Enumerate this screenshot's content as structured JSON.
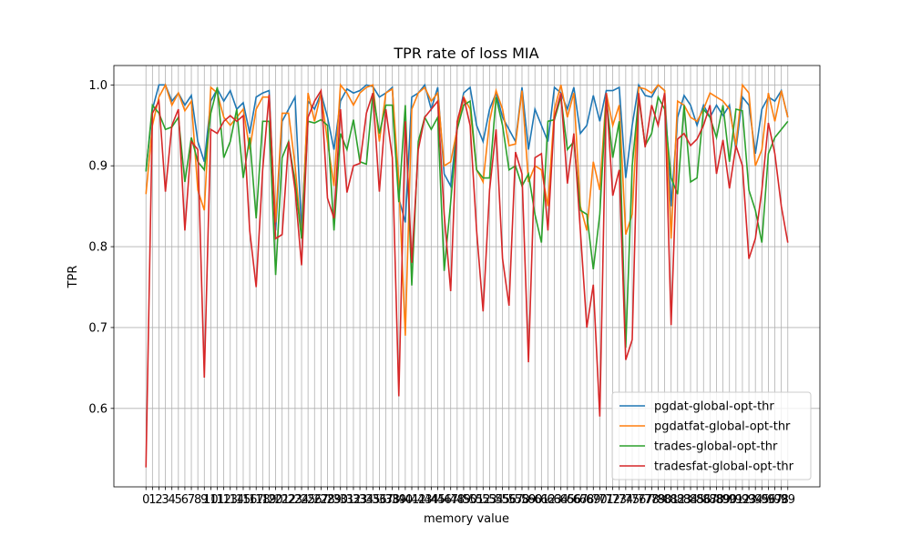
{
  "chart_data": {
    "type": "line",
    "title": "TPR rate of loss MIA",
    "x_label": "memory value",
    "y_label": "TPR",
    "x": [
      0,
      1,
      2,
      3,
      4,
      5,
      6,
      7,
      8,
      9,
      10,
      11,
      12,
      13,
      14,
      15,
      16,
      17,
      18,
      19,
      20,
      21,
      22,
      23,
      24,
      25,
      26,
      27,
      28,
      29,
      30,
      31,
      32,
      33,
      34,
      35,
      36,
      37,
      38,
      39,
      40,
      41,
      42,
      43,
      44,
      45,
      46,
      47,
      48,
      49,
      50,
      51,
      52,
      53,
      54,
      55,
      56,
      57,
      58,
      59,
      60,
      61,
      62,
      63,
      64,
      65,
      66,
      67,
      68,
      69,
      70,
      71,
      72,
      73,
      74,
      75,
      76,
      77,
      78,
      79,
      80,
      81,
      82,
      83,
      84,
      85,
      86,
      87,
      88,
      89,
      90,
      91,
      92,
      93,
      94,
      95,
      96,
      97,
      98,
      99
    ],
    "xticks": [
      0,
      1,
      2,
      3,
      4,
      5,
      6,
      7,
      8,
      9,
      10,
      11,
      12,
      13,
      14,
      15,
      16,
      17,
      18,
      19,
      20,
      21,
      22,
      23,
      24,
      25,
      26,
      27,
      28,
      29,
      30,
      31,
      32,
      33,
      34,
      35,
      36,
      37,
      38,
      39,
      40,
      41,
      42,
      43,
      44,
      45,
      46,
      47,
      48,
      49,
      50,
      51,
      52,
      53,
      54,
      55,
      56,
      57,
      58,
      59,
      60,
      61,
      62,
      63,
      64,
      65,
      66,
      67,
      68,
      69,
      70,
      71,
      72,
      73,
      74,
      75,
      76,
      77,
      78,
      79,
      80,
      81,
      82,
      83,
      84,
      85,
      86,
      87,
      88,
      89,
      90,
      91,
      92,
      93,
      94,
      95,
      96,
      97,
      98,
      99
    ],
    "xlim": [
      -4.95,
      103.95
    ],
    "ylim": [
      0.503,
      1.024
    ],
    "yticks": [
      0.6,
      0.7,
      0.8,
      0.9,
      {
        "value": 1,
        "label": "1.0"
      }
    ],
    "grid": true,
    "legend": "lower right",
    "series": [
      {
        "name": "pgdat-global-opt-thr",
        "color": "#1f77b4",
        "values": [
          0.893,
          0.97,
          1,
          1,
          0.98,
          0.99,
          0.975,
          0.987,
          0.93,
          0.905,
          0.98,
          0.995,
          0.98,
          0.993,
          0.97,
          0.978,
          0.94,
          0.985,
          0.99,
          0.993,
          0.82,
          0.955,
          0.97,
          0.985,
          0.82,
          0.98,
          0.97,
          0.99,
          0.96,
          0.92,
          0.98,
          0.995,
          0.99,
          0.993,
          1,
          0.998,
          0.985,
          0.99,
          0.997,
          0.86,
          0.83,
          0.985,
          0.99,
          1,
          0.97,
          0.997,
          0.89,
          0.875,
          0.95,
          0.99,
          0.997,
          0.95,
          0.93,
          0.97,
          0.99,
          0.96,
          0.945,
          0.93,
          0.997,
          0.92,
          0.97,
          0.95,
          0.93,
          0.997,
          0.99,
          0.97,
          0.997,
          0.94,
          0.95,
          0.987,
          0.955,
          0.993,
          0.993,
          0.997,
          0.885,
          0.95,
          1,
          0.987,
          0.985,
          1,
          0.993,
          0.85,
          0.96,
          0.987,
          0.975,
          0.95,
          0.975,
          0.96,
          0.975,
          0.962,
          0.975,
          0.92,
          0.985,
          0.975,
          0.915,
          0.97,
          0.985,
          0.98,
          0.993,
          0.96
        ]
      },
      {
        "name": "pgdatfat-global-opt-thr",
        "color": "#ff7f0e",
        "values": [
          0.865,
          0.95,
          0.985,
          1,
          0.975,
          0.99,
          0.968,
          0.98,
          0.87,
          0.845,
          0.997,
          0.99,
          0.96,
          0.95,
          0.96,
          0.97,
          0.92,
          0.97,
          0.985,
          0.985,
          0.83,
          0.965,
          0.965,
          0.9,
          0.81,
          0.99,
          0.955,
          0.99,
          0.93,
          0.875,
          1,
          0.99,
          0.975,
          0.99,
          0.997,
          1,
          0.93,
          0.99,
          0.995,
          0.88,
          0.69,
          0.97,
          0.99,
          0.997,
          0.98,
          0.99,
          0.9,
          0.905,
          0.945,
          0.985,
          0.97,
          0.895,
          0.88,
          0.955,
          0.993,
          0.97,
          0.925,
          0.927,
          0.993,
          0.88,
          0.9,
          0.895,
          0.85,
          0.97,
          1,
          0.96,
          0.99,
          0.85,
          0.82,
          0.905,
          0.87,
          0.99,
          0.95,
          0.975,
          0.815,
          0.84,
          0.997,
          0.995,
          0.99,
          1,
          0.993,
          0.81,
          0.98,
          0.975,
          0.96,
          0.955,
          0.97,
          0.99,
          0.985,
          0.98,
          0.97,
          0.925,
          1,
          0.99,
          0.9,
          0.92,
          0.99,
          0.955,
          0.993,
          0.96
        ]
      },
      {
        "name": "trades-global-opt-thr",
        "color": "#2ca02c",
        "values": [
          0.893,
          0.975,
          0.965,
          0.945,
          0.948,
          0.96,
          0.88,
          0.935,
          0.905,
          0.895,
          0.965,
          0.997,
          0.91,
          0.93,
          0.97,
          0.885,
          0.935,
          0.835,
          0.955,
          0.955,
          0.765,
          0.91,
          0.93,
          0.88,
          0.81,
          0.955,
          0.953,
          0.957,
          0.95,
          0.82,
          0.94,
          0.92,
          0.957,
          0.905,
          0.902,
          0.99,
          0.94,
          0.975,
          0.975,
          0.855,
          0.975,
          0.752,
          0.93,
          0.96,
          0.945,
          0.96,
          0.77,
          0.855,
          0.945,
          0.975,
          0.98,
          0.895,
          0.885,
          0.885,
          0.985,
          0.95,
          0.895,
          0.9,
          0.875,
          0.89,
          0.84,
          0.805,
          0.955,
          0.957,
          0.985,
          0.92,
          0.93,
          0.845,
          0.84,
          0.772,
          0.84,
          0.985,
          0.91,
          0.955,
          0.675,
          0.9,
          0.985,
          0.925,
          0.94,
          0.985,
          0.97,
          0.885,
          0.865,
          0.975,
          0.88,
          0.885,
          0.97,
          0.96,
          0.935,
          0.975,
          0.905,
          0.97,
          0.968,
          0.87,
          0.845,
          0.805,
          0.915,
          0.935,
          0.945,
          0.955
        ]
      },
      {
        "name": "tradesfat-global-opt-thr",
        "color": "#d62728",
        "values": [
          0.527,
          0.965,
          0.98,
          0.868,
          0.95,
          0.97,
          0.82,
          0.93,
          0.92,
          0.638,
          0.945,
          0.94,
          0.955,
          0.962,
          0.955,
          0.962,
          0.82,
          0.75,
          0.895,
          0.988,
          0.81,
          0.815,
          0.93,
          0.87,
          0.777,
          0.96,
          0.98,
          0.993,
          0.86,
          0.835,
          0.97,
          0.867,
          0.9,
          0.903,
          0.965,
          0.99,
          0.868,
          0.97,
          0.91,
          0.615,
          0.955,
          0.78,
          0.92,
          0.96,
          0.97,
          0.98,
          0.84,
          0.745,
          0.955,
          0.985,
          0.95,
          0.82,
          0.72,
          0.87,
          0.945,
          0.785,
          0.727,
          0.917,
          0.89,
          0.657,
          0.91,
          0.915,
          0.82,
          0.96,
          0.99,
          0.878,
          0.94,
          0.82,
          0.7,
          0.753,
          0.59,
          0.99,
          0.863,
          0.895,
          0.66,
          0.685,
          0.99,
          0.923,
          0.975,
          0.95,
          0.99,
          0.703,
          0.933,
          0.94,
          0.925,
          0.933,
          0.95,
          0.975,
          0.89,
          0.932,
          0.872,
          0.925,
          0.9,
          0.785,
          0.81,
          0.87,
          0.953,
          0.915,
          0.85,
          0.805
        ]
      }
    ]
  }
}
